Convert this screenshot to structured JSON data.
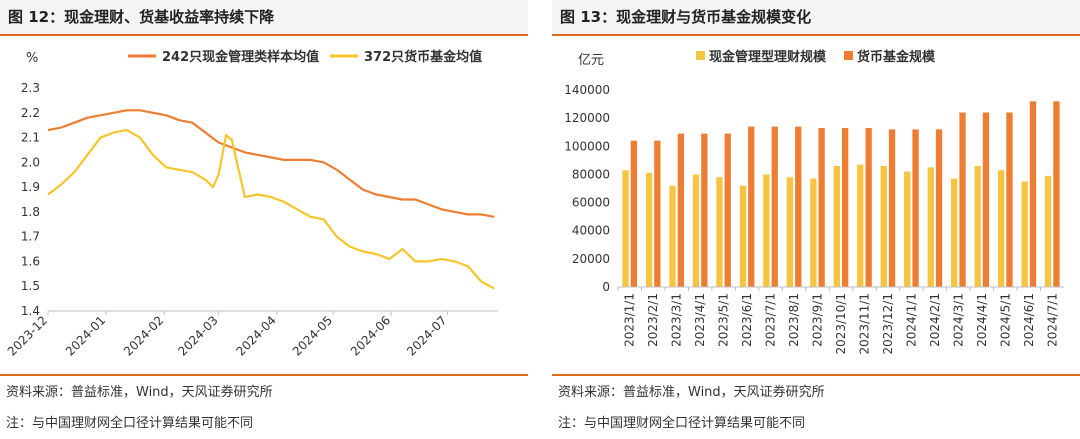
{
  "left": {
    "title": "图 12：现金理财、货基收益率持续下降",
    "source": "资料来源：普益标准，Wind，天风证券研究所",
    "note": "注：与中国理财网全口径计算结果可能不同"
  },
  "right": {
    "title": "图 13：现金理财与货币基金规模变化",
    "source": "资料来源：普益标准，Wind，天风证券研究所",
    "note": "注：与中国理财网全口径计算结果可能不同"
  },
  "chart_data": [
    {
      "type": "line",
      "title": "",
      "ylabel": "%",
      "ylim": [
        1.4,
        2.3
      ],
      "yticks": [
        "1.4",
        "1.5",
        "1.6",
        "1.7",
        "1.8",
        "1.9",
        "2.0",
        "2.1",
        "2.2",
        "2.3"
      ],
      "xticks": [
        "2023-12",
        "2024-01",
        "2024-02",
        "2024-03",
        "2024-04",
        "2024-05",
        "2024-06",
        "2024-07"
      ],
      "legend_position": "top",
      "grid": false,
      "series": [
        {
          "name": "242只现金管理类样本均值",
          "color": "#ee7d31",
          "x": [
            "2023-12-01",
            "2023-12-08",
            "2023-12-15",
            "2023-12-22",
            "2023-12-29",
            "2024-01-05",
            "2024-01-12",
            "2024-01-19",
            "2024-01-26",
            "2024-02-02",
            "2024-02-09",
            "2024-02-16",
            "2024-02-23",
            "2024-03-01",
            "2024-03-08",
            "2024-03-15",
            "2024-03-22",
            "2024-03-29",
            "2024-04-05",
            "2024-04-12",
            "2024-04-19",
            "2024-04-26",
            "2024-05-03",
            "2024-05-10",
            "2024-05-17",
            "2024-05-24",
            "2024-05-31",
            "2024-06-07",
            "2024-06-14",
            "2024-06-21",
            "2024-06-28",
            "2024-07-05",
            "2024-07-12",
            "2024-07-19",
            "2024-07-26"
          ],
          "y": [
            2.13,
            2.14,
            2.16,
            2.18,
            2.19,
            2.2,
            2.21,
            2.21,
            2.2,
            2.19,
            2.17,
            2.16,
            2.12,
            2.08,
            2.06,
            2.04,
            2.03,
            2.02,
            2.01,
            2.01,
            2.01,
            2.0,
            1.97,
            1.93,
            1.89,
            1.87,
            1.86,
            1.85,
            1.85,
            1.83,
            1.81,
            1.8,
            1.79,
            1.79,
            1.78
          ]
        },
        {
          "name": "372只货币基金均值",
          "color": "#f7c42a",
          "x": [
            "2023-12-01",
            "2023-12-08",
            "2023-12-15",
            "2023-12-22",
            "2023-12-29",
            "2024-01-05",
            "2024-01-12",
            "2024-01-19",
            "2024-01-26",
            "2024-02-02",
            "2024-02-09",
            "2024-02-16",
            "2024-02-23",
            "2024-02-27",
            "2024-03-01",
            "2024-03-05",
            "2024-03-08",
            "2024-03-15",
            "2024-03-22",
            "2024-03-29",
            "2024-04-05",
            "2024-04-12",
            "2024-04-19",
            "2024-04-26",
            "2024-05-03",
            "2024-05-10",
            "2024-05-17",
            "2024-05-24",
            "2024-05-31",
            "2024-06-07",
            "2024-06-14",
            "2024-06-21",
            "2024-06-28",
            "2024-07-05",
            "2024-07-12",
            "2024-07-19",
            "2024-07-26"
          ],
          "y": [
            1.87,
            1.91,
            1.96,
            2.03,
            2.1,
            2.12,
            2.13,
            2.1,
            2.03,
            1.98,
            1.97,
            1.96,
            1.93,
            1.9,
            1.95,
            2.11,
            2.09,
            1.86,
            1.87,
            1.86,
            1.84,
            1.81,
            1.78,
            1.77,
            1.7,
            1.66,
            1.64,
            1.63,
            1.61,
            1.65,
            1.6,
            1.6,
            1.61,
            1.6,
            1.58,
            1.52,
            1.49
          ]
        }
      ]
    },
    {
      "type": "bar",
      "title": "",
      "ylabel": "亿元",
      "ylim": [
        0,
        140000
      ],
      "yticks": [
        "0",
        "20000",
        "40000",
        "60000",
        "80000",
        "100000",
        "120000",
        "140000"
      ],
      "legend_position": "top",
      "grid": false,
      "categories": [
        "2023/1/1",
        "2023/2/1",
        "2023/3/1",
        "2023/4/1",
        "2023/5/1",
        "2023/6/1",
        "2023/7/1",
        "2023/8/1",
        "2023/9/1",
        "2023/10/1",
        "2023/11/1",
        "2023/12/1",
        "2024/1/1",
        "2024/2/1",
        "2024/3/1",
        "2024/4/1",
        "2024/5/1",
        "2024/6/1",
        "2024/7/1"
      ],
      "series": [
        {
          "name": "现金管理型理财规模",
          "color": "#f7c442",
          "values": [
            83000,
            81000,
            72000,
            80000,
            78000,
            72000,
            80000,
            78000,
            77000,
            86000,
            87000,
            86000,
            82000,
            85000,
            77000,
            86000,
            83000,
            75000,
            79000
          ]
        },
        {
          "name": "货币基金规模",
          "color": "#ee7d31",
          "values": [
            104000,
            104000,
            109000,
            109000,
            109000,
            114000,
            114000,
            114000,
            113000,
            113000,
            113000,
            112000,
            112000,
            112000,
            124000,
            124000,
            124000,
            132000,
            132000
          ]
        }
      ]
    }
  ]
}
